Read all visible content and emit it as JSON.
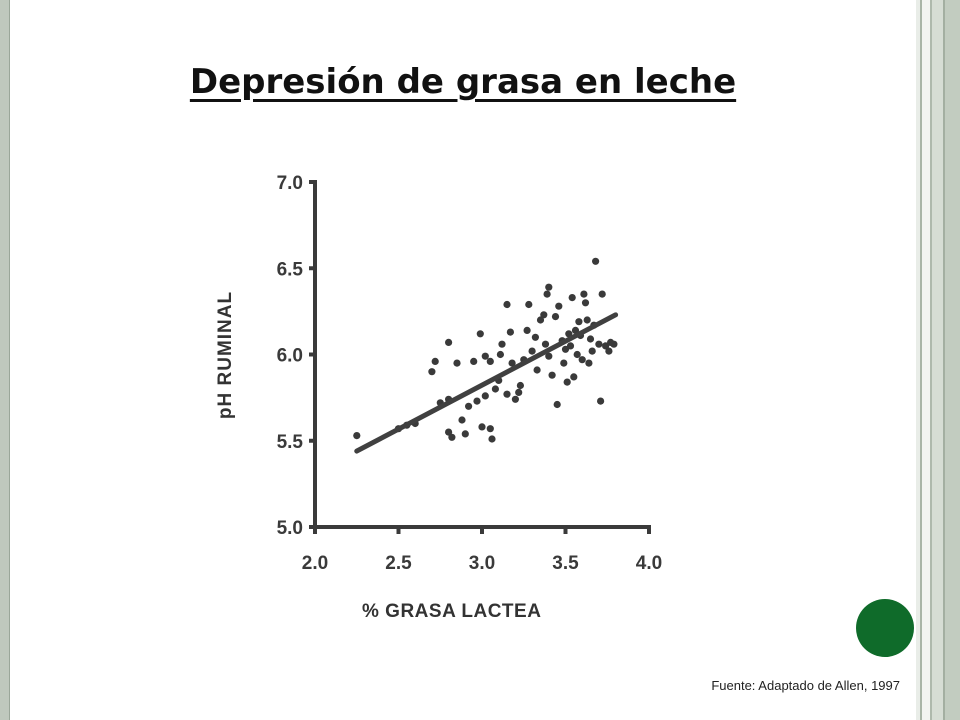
{
  "slide": {
    "title": "Depresión de grasa en leche",
    "source": "Fuente: Adaptado de Allen, 1997",
    "accent_color": "#0f6b2a"
  },
  "chart_data": {
    "type": "scatter",
    "title": "",
    "xlabel": "% GRASA LACTEA",
    "ylabel": "pH  RUMINAL",
    "xlim": [
      2.0,
      4.0
    ],
    "ylim": [
      5.0,
      7.0
    ],
    "x_ticks": [
      "2.0",
      "2.5",
      "3.0",
      "3.5",
      "4.0"
    ],
    "y_ticks": [
      "5.0",
      "5.5",
      "6.0",
      "6.5",
      "7.0"
    ],
    "grid": false,
    "series": [
      {
        "points": [
          [
            2.25,
            5.53
          ],
          [
            2.5,
            5.57
          ],
          [
            2.55,
            5.59
          ],
          [
            2.6,
            5.6
          ],
          [
            2.7,
            5.9
          ],
          [
            2.72,
            5.96
          ],
          [
            2.75,
            5.72
          ],
          [
            2.8,
            5.74
          ],
          [
            2.8,
            5.55
          ],
          [
            2.82,
            5.52
          ],
          [
            2.85,
            5.95
          ],
          [
            2.8,
            6.07
          ],
          [
            2.88,
            5.62
          ],
          [
            2.9,
            5.54
          ],
          [
            2.92,
            5.7
          ],
          [
            2.95,
            5.96
          ],
          [
            2.97,
            5.73
          ],
          [
            2.99,
            6.12
          ],
          [
            3.0,
            5.58
          ],
          [
            3.02,
            5.76
          ],
          [
            3.02,
            5.99
          ],
          [
            3.05,
            5.57
          ],
          [
            3.06,
            5.51
          ],
          [
            3.05,
            5.96
          ],
          [
            3.08,
            5.8
          ],
          [
            3.1,
            5.85
          ],
          [
            3.11,
            6.0
          ],
          [
            3.12,
            6.06
          ],
          [
            3.15,
            6.29
          ],
          [
            3.15,
            5.77
          ],
          [
            3.17,
            6.13
          ],
          [
            3.18,
            5.95
          ],
          [
            3.2,
            5.74
          ],
          [
            3.22,
            5.78
          ],
          [
            3.23,
            5.82
          ],
          [
            3.25,
            5.97
          ],
          [
            3.27,
            6.14
          ],
          [
            3.28,
            6.29
          ],
          [
            3.3,
            6.02
          ],
          [
            3.32,
            6.1
          ],
          [
            3.33,
            5.91
          ],
          [
            3.35,
            6.2
          ],
          [
            3.37,
            6.23
          ],
          [
            3.38,
            6.06
          ],
          [
            3.39,
            6.35
          ],
          [
            3.4,
            6.39
          ],
          [
            3.4,
            5.99
          ],
          [
            3.42,
            5.88
          ],
          [
            3.44,
            6.22
          ],
          [
            3.45,
            5.71
          ],
          [
            3.46,
            6.28
          ],
          [
            3.48,
            6.08
          ],
          [
            3.49,
            5.95
          ],
          [
            3.5,
            6.03
          ],
          [
            3.51,
            5.84
          ],
          [
            3.52,
            6.12
          ],
          [
            3.53,
            6.05
          ],
          [
            3.54,
            6.33
          ],
          [
            3.55,
            5.87
          ],
          [
            3.56,
            6.14
          ],
          [
            3.57,
            6.0
          ],
          [
            3.58,
            6.19
          ],
          [
            3.59,
            6.11
          ],
          [
            3.6,
            5.97
          ],
          [
            3.61,
            6.35
          ],
          [
            3.62,
            6.3
          ],
          [
            3.63,
            6.2
          ],
          [
            3.64,
            5.95
          ],
          [
            3.65,
            6.09
          ],
          [
            3.66,
            6.02
          ],
          [
            3.67,
            6.17
          ],
          [
            3.68,
            6.54
          ],
          [
            3.7,
            6.06
          ],
          [
            3.71,
            5.73
          ],
          [
            3.72,
            6.35
          ],
          [
            3.74,
            6.05
          ],
          [
            3.76,
            6.02
          ],
          [
            3.77,
            6.07
          ],
          [
            3.79,
            6.06
          ]
        ]
      }
    ],
    "trendline": {
      "x": [
        2.25,
        3.8
      ],
      "y": [
        5.44,
        6.23
      ]
    }
  }
}
